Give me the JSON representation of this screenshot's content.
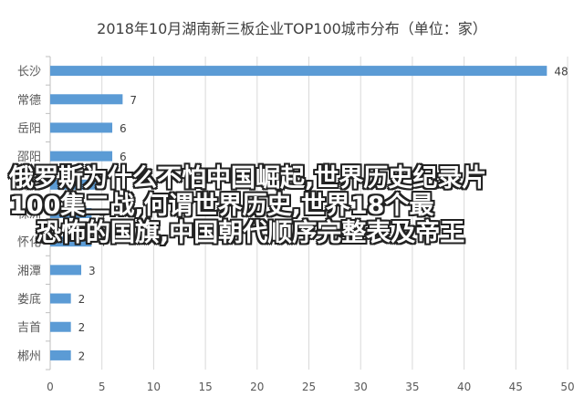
{
  "chart_data": {
    "type": "bar",
    "orientation": "horizontal",
    "title": "2018年10月湖南新三板企业TOP100城市分布（单位：家）",
    "categories": [
      "长沙",
      "常德",
      "岳阳",
      "邵阳",
      "衡阳",
      "株洲",
      "怀化",
      "湘潭",
      "娄底",
      "吉首",
      "郴州"
    ],
    "values": [
      48,
      7,
      6,
      6,
      5,
      4,
      4,
      3,
      2,
      2,
      2
    ],
    "xlim": [
      0,
      50
    ],
    "xticks": [
      0,
      5,
      10,
      15,
      20,
      25,
      30,
      35,
      40,
      45,
      50
    ],
    "grid": true,
    "bar_color": "#5b9bd5",
    "data_labels": true
  },
  "overlay": {
    "lines": [
      "俄罗斯为什么不怕中国崛起,世界历史纪录片",
      "100集二战,何谓世界历史,世界18个最",
      "恐怖的国旗,中国朝代顺序完整表及帝王"
    ]
  }
}
